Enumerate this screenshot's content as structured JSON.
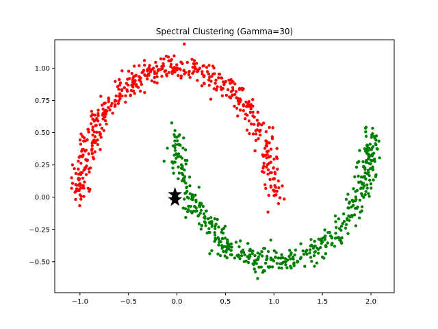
{
  "chart_data": {
    "type": "scatter",
    "title": "Spectral Clustering (Gamma=30)",
    "xlabel": "",
    "ylabel": "",
    "xlim": [
      -1.26,
      2.24
    ],
    "ylim": [
      -0.74,
      1.22
    ],
    "x_ticks": [
      -1.0,
      -0.5,
      0.0,
      0.5,
      1.0,
      1.5,
      2.0
    ],
    "x_tick_labels": [
      "−1.0",
      "−0.5",
      "0.0",
      "0.5",
      "1.0",
      "1.5",
      "2.0"
    ],
    "y_ticks": [
      -0.5,
      -0.25,
      0.0,
      0.25,
      0.5,
      0.75,
      1.0
    ],
    "y_tick_labels": [
      "−0.50",
      "−0.25",
      "0.00",
      "0.25",
      "0.50",
      "0.75",
      "1.00"
    ],
    "grid": false,
    "series": [
      {
        "color": "#ff0000",
        "description": "upper moon: x = cos(t), y = sin(t), t in [0, pi], noise sd about 0.05",
        "count": 500,
        "noise": 0.05,
        "points": [
          [
            -1.0,
            0.05
          ],
          [
            -0.95,
            0.3
          ],
          [
            -0.87,
            0.5
          ],
          [
            -0.71,
            0.71
          ],
          [
            -0.5,
            0.87
          ],
          [
            -0.26,
            0.97
          ],
          [
            0.0,
            1.0
          ],
          [
            0.26,
            0.97
          ],
          [
            0.5,
            0.87
          ],
          [
            0.71,
            0.71
          ],
          [
            0.87,
            0.5
          ],
          [
            0.95,
            0.3
          ],
          [
            1.0,
            0.05
          ]
        ]
      },
      {
        "color": "#008000",
        "description": "lower moon: x = 1 - cos(t), y = 0.5 - sin(t), t in [0, pi], noise sd about 0.05",
        "count": 500,
        "noise": 0.05,
        "points": [
          [
            0.0,
            0.45
          ],
          [
            0.05,
            0.2
          ],
          [
            0.13,
            0.0
          ],
          [
            0.29,
            -0.21
          ],
          [
            0.5,
            -0.37
          ],
          [
            0.74,
            -0.47
          ],
          [
            1.0,
            -0.5
          ],
          [
            1.26,
            -0.47
          ],
          [
            1.5,
            -0.37
          ],
          [
            1.71,
            -0.21
          ],
          [
            1.87,
            0.0
          ],
          [
            1.95,
            0.2
          ],
          [
            2.0,
            0.45
          ]
        ]
      }
    ],
    "markers": [
      {
        "label": "star",
        "color": "#000000",
        "x": -0.02,
        "y": 0.02
      },
      {
        "label": "star",
        "color": "#000000",
        "x": -0.02,
        "y": -0.02
      }
    ]
  }
}
